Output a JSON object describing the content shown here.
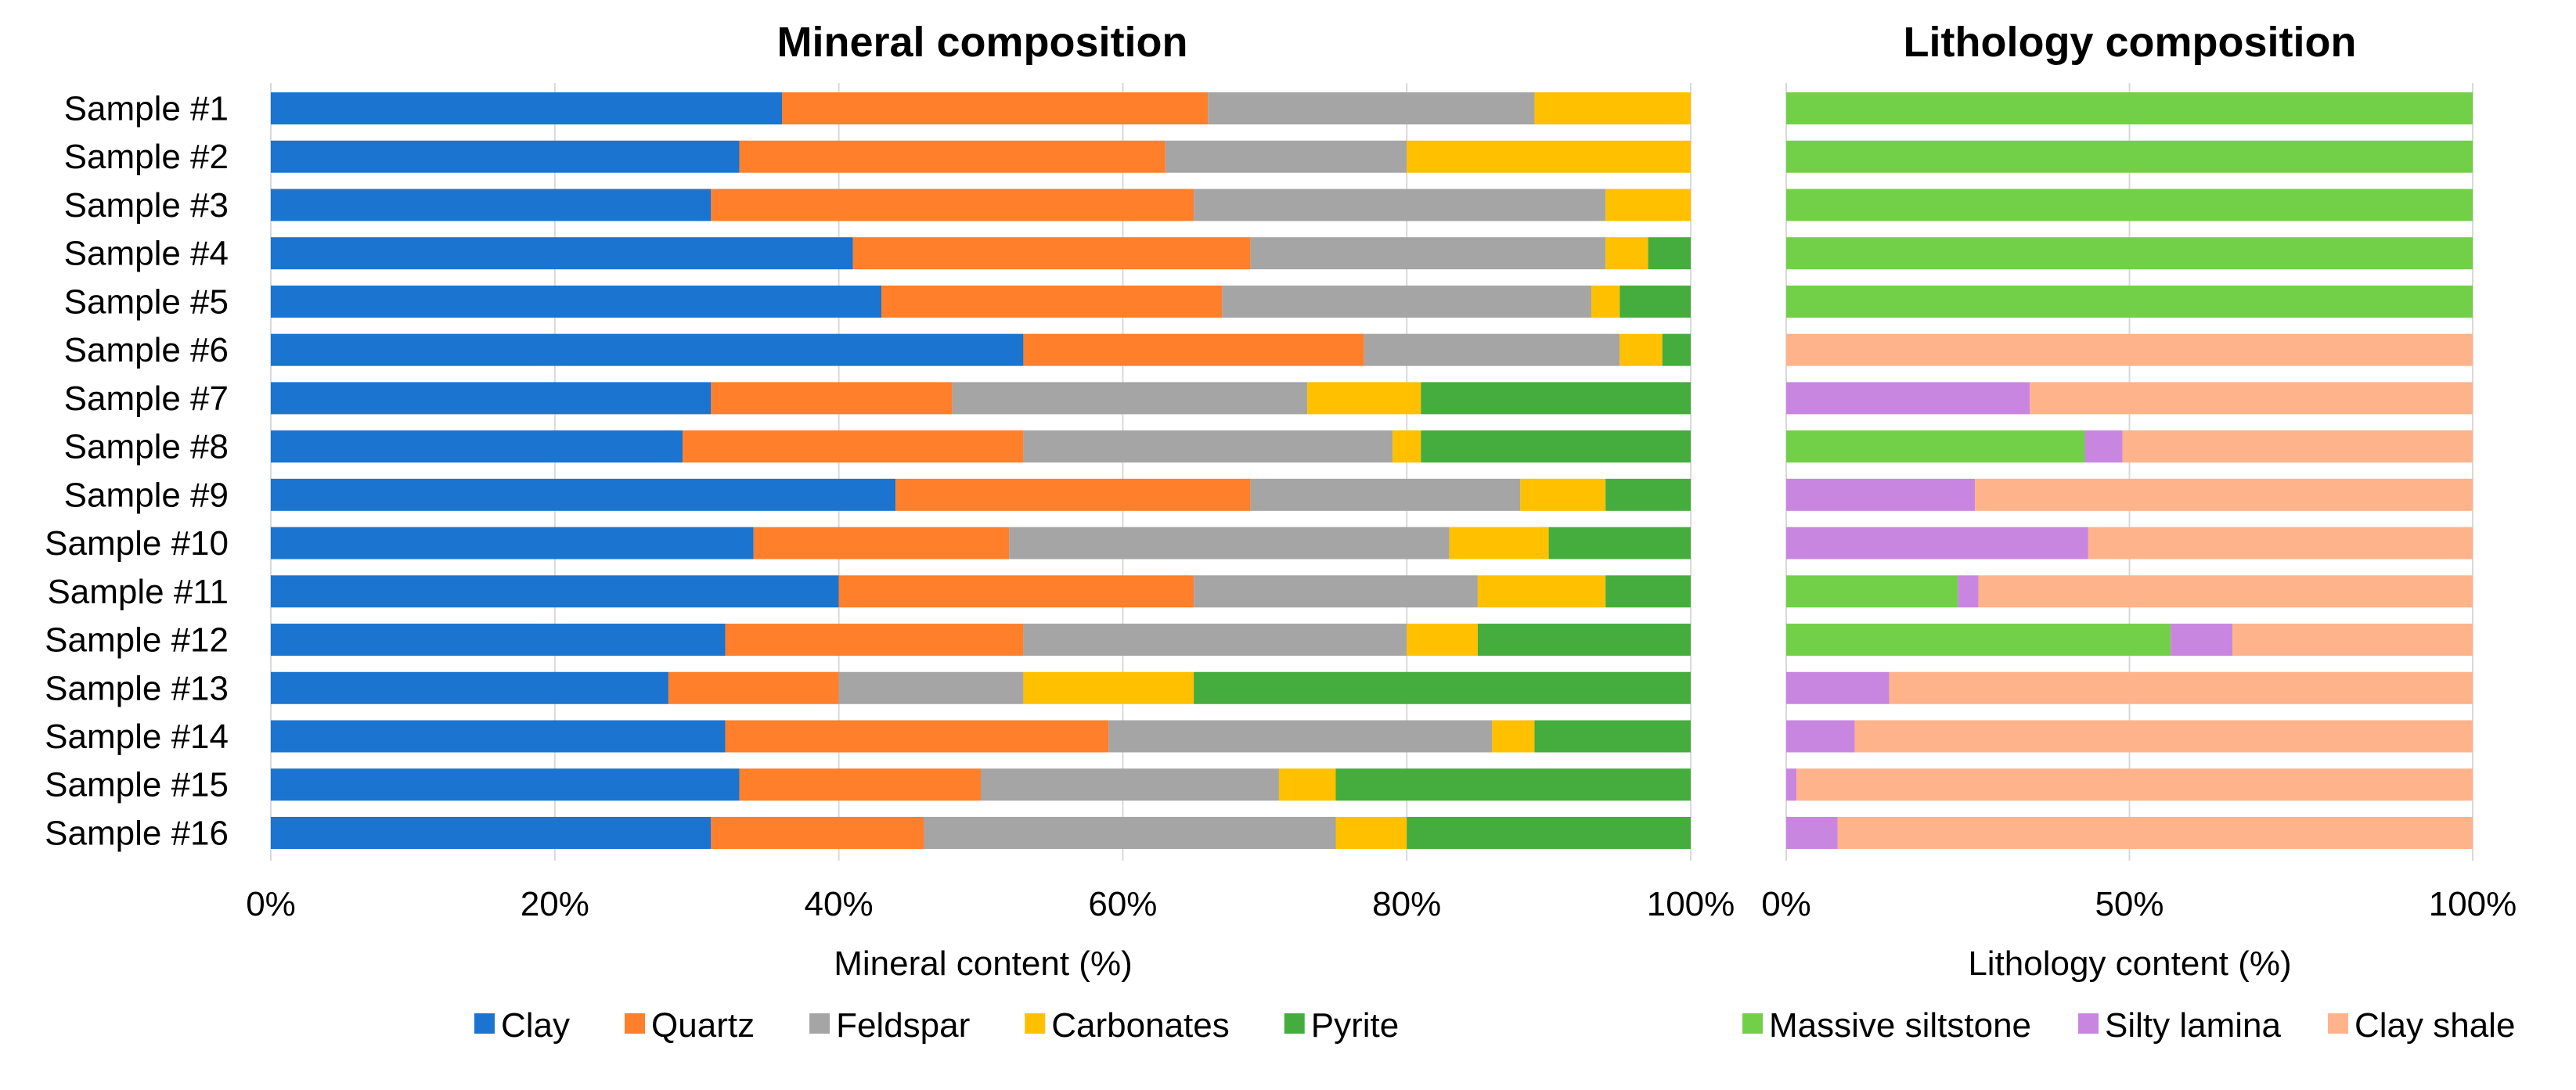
{
  "chart_data": [
    {
      "type": "bar",
      "orientation": "horizontal",
      "stacked": true,
      "title": "Mineral composition",
      "xlabel": "Mineral content (%)",
      "ylabel": "",
      "xlim": [
        0,
        100
      ],
      "xticks": [
        "0%",
        "20%",
        "40%",
        "60%",
        "80%",
        "100%"
      ],
      "grid": true,
      "legend": "bottom",
      "categories": [
        "Sample #1",
        "Sample #2",
        "Sample #3",
        "Sample #4",
        "Sample #5",
        "Sample #6",
        "Sample #7",
        "Sample #8",
        "Sample #9",
        "Sample #10",
        "Sample #11",
        "Sample #12",
        "Sample #13",
        "Sample #14",
        "Sample #15",
        "Sample #16"
      ],
      "series": [
        {
          "name": "Clay",
          "color": "#1B74CF",
          "values": [
            36,
            33,
            31,
            41,
            43,
            53,
            31,
            29,
            44,
            34,
            40,
            32,
            28,
            32,
            33,
            31
          ]
        },
        {
          "name": "Quartz",
          "color": "#FF7F2A",
          "values": [
            30,
            30,
            34,
            28,
            24,
            24,
            17,
            24,
            25,
            18,
            25,
            21,
            12,
            27,
            17,
            15
          ]
        },
        {
          "name": "Feldspar",
          "color": "#A5A5A5",
          "values": [
            23,
            17,
            29,
            25,
            26,
            18,
            25,
            26,
            19,
            31,
            20,
            27,
            13,
            27,
            21,
            29
          ]
        },
        {
          "name": "Carbonates",
          "color": "#FFC000",
          "values": [
            11,
            20,
            6,
            3,
            2,
            3,
            8,
            2,
            6,
            7,
            9,
            5,
            12,
            3,
            4,
            5
          ]
        },
        {
          "name": "Pyrite",
          "color": "#45AD3D",
          "values": [
            0,
            0,
            0,
            3,
            5,
            2,
            19,
            19,
            6,
            10,
            6,
            15,
            35,
            11,
            25,
            20
          ]
        }
      ]
    },
    {
      "type": "bar",
      "orientation": "horizontal",
      "stacked": true,
      "title": "Lithology composition",
      "xlabel": "Lithology content (%)",
      "ylabel": "",
      "xlim": [
        0,
        100
      ],
      "xticks": [
        "0%",
        "50%",
        "100%"
      ],
      "grid": true,
      "legend": "bottom",
      "categories": [
        "Sample #1",
        "Sample #2",
        "Sample #3",
        "Sample #4",
        "Sample #5",
        "Sample #6",
        "Sample #7",
        "Sample #8",
        "Sample #9",
        "Sample #10",
        "Sample #11",
        "Sample #12",
        "Sample #13",
        "Sample #14",
        "Sample #15",
        "Sample #16"
      ],
      "series": [
        {
          "name": "Massive siltstone",
          "color": "#72D048",
          "values": [
            100,
            100,
            100,
            100,
            100,
            0,
            0,
            43.5,
            0,
            0,
            25,
            56,
            0,
            0,
            0,
            0
          ]
        },
        {
          "name": "Silty lamina",
          "color": "#C986E0",
          "values": [
            0,
            0,
            0,
            0,
            0,
            0,
            35.5,
            5.5,
            27.5,
            44,
            3,
            9,
            15,
            10,
            1.5,
            7.5
          ]
        },
        {
          "name": "Clay shale",
          "color": "#FFB38A",
          "values": [
            0,
            0,
            0,
            0,
            0,
            100,
            64.5,
            51,
            72.5,
            56,
            72,
            35,
            85,
            90,
            98.5,
            92.5
          ]
        }
      ]
    }
  ]
}
